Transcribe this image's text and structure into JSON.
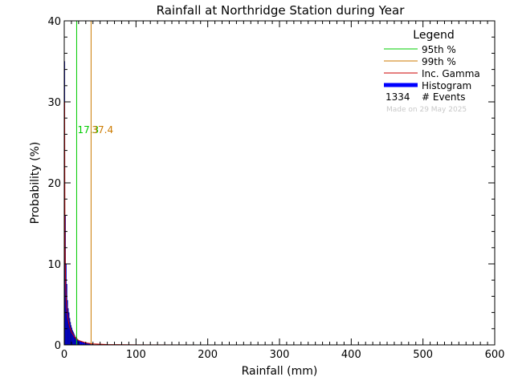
{
  "chart_data": {
    "type": "bar",
    "title": "Rainfall at Northridge Station during Year",
    "xlabel": "Rainfall (mm)",
    "ylabel": "Probability (%)",
    "xlim": [
      0,
      600
    ],
    "ylim": [
      0,
      40
    ],
    "x_ticks": [
      0,
      100,
      200,
      300,
      400,
      500,
      600
    ],
    "y_ticks": [
      0,
      10,
      20,
      30,
      40
    ],
    "grid": false,
    "legend_position": "top-right",
    "legend": {
      "title": "Legend",
      "entries": [
        {
          "label": "95th %",
          "color": "#00cc00",
          "style": "line"
        },
        {
          "label": "99th %",
          "color": "#cc7a00",
          "style": "line"
        },
        {
          "label": "Inc. Gamma",
          "color": "#cc0000",
          "style": "line"
        },
        {
          "label": "Histogram",
          "color": "#0000ff",
          "style": "thick"
        }
      ],
      "events_count": "1334",
      "events_label": "# Events",
      "made_on": "Made on 29 May 2025"
    },
    "percentiles": [
      {
        "name": "95th %",
        "value": 17.3,
        "label": "17.3",
        "color": "#00cc00"
      },
      {
        "name": "99th %",
        "value": 37.4,
        "label": "37.4",
        "color": "#cc7a00"
      }
    ],
    "histogram": {
      "color": "#0000ff",
      "bin_width": 1,
      "bins_x": [
        0,
        1,
        2,
        3,
        4,
        5,
        6,
        7,
        8,
        9,
        10,
        11,
        12,
        13,
        14,
        15,
        16,
        17,
        18,
        19,
        20,
        22,
        24,
        26,
        28,
        30,
        33,
        36,
        40
      ],
      "values": [
        35,
        16,
        10,
        7.5,
        5.5,
        4.5,
        4,
        3.3,
        2.8,
        2.4,
        2.1,
        1.8,
        1.6,
        1.4,
        1.2,
        1.0,
        0.9,
        0.8,
        0.7,
        0.6,
        0.5,
        0.4,
        0.35,
        0.3,
        0.25,
        0.2,
        0.15,
        0.1,
        0.05
      ]
    },
    "gamma_curve": {
      "color": "#cc0000",
      "x": [
        0.5,
        1,
        2,
        3,
        4,
        5,
        7,
        10,
        15,
        20,
        30,
        40,
        60,
        100,
        200,
        300,
        400,
        500,
        600
      ],
      "y": [
        30,
        12,
        7,
        5,
        4,
        3.3,
        2.4,
        1.6,
        0.9,
        0.55,
        0.25,
        0.12,
        0.05,
        0.01,
        0,
        0,
        0,
        0,
        0
      ]
    }
  }
}
